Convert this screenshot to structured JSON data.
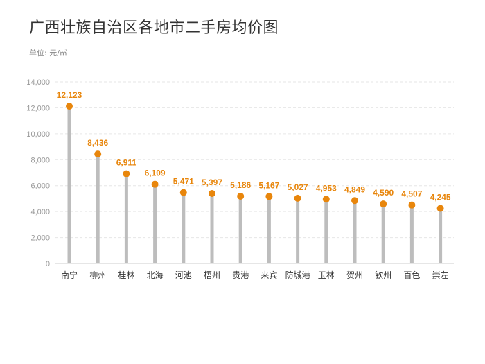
{
  "chart_data": {
    "type": "lollipop",
    "title": "广西壮族自治区各地市二手房均价图",
    "unit_label": "单位: 元/㎡",
    "xlabel": "",
    "ylabel": "",
    "ylim": [
      0,
      14000
    ],
    "yticks": [
      0,
      2000,
      4000,
      6000,
      8000,
      10000,
      12000,
      14000
    ],
    "ytick_labels": [
      "0",
      "2,000",
      "4,000",
      "6,000",
      "8,000",
      "10,000",
      "12,000",
      "14,000"
    ],
    "grid": true,
    "categories": [
      "南宁",
      "柳州",
      "桂林",
      "北海",
      "河池",
      "梧州",
      "贵港",
      "来宾",
      "防城港",
      "玉林",
      "贺州",
      "钦州",
      "百色",
      "崇左"
    ],
    "values": [
      12123,
      8436,
      6911,
      6109,
      5471,
      5397,
      5186,
      5167,
      5027,
      4953,
      4849,
      4590,
      4507,
      4245
    ],
    "value_labels": [
      "12,123",
      "8,436",
      "6,911",
      "6,109",
      "5,471",
      "5,397",
      "5,186",
      "5,167",
      "5,027",
      "4,953",
      "4,849",
      "4,590",
      "4,507",
      "4,245"
    ],
    "colors": {
      "marker": "#e8860c",
      "stem": "#bdbdbd",
      "grid": "#e6e6e6",
      "axis": "#cccccc",
      "label": "#e8860c"
    }
  }
}
